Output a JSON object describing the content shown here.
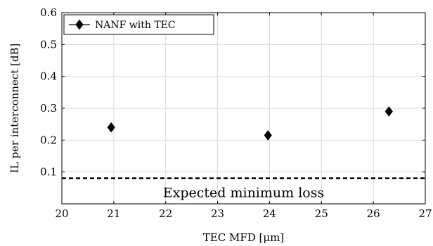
{
  "chart_data": {
    "type": "scatter",
    "xlabel": "TEC MFD [μm]",
    "ylabel": "IL per interconnect [dB]",
    "xlim": [
      20,
      27
    ],
    "ylim": [
      0,
      0.6
    ],
    "x_ticks": [
      "20",
      "21",
      "22",
      "23",
      "24",
      "25",
      "26",
      "27"
    ],
    "y_ticks": [
      "0.1",
      "0.2",
      "0.3",
      "0.4",
      "0.5",
      "0.6"
    ],
    "grid": true,
    "legend_position": "top-left",
    "series": [
      {
        "name": "NANF with TEC",
        "marker": "diamond",
        "color": "#000000",
        "x": [
          20.95,
          23.97,
          26.3
        ],
        "y": [
          0.24,
          0.215,
          0.29
        ]
      }
    ],
    "reference_line": {
      "y": 0.08,
      "style": "dashed",
      "label": "Expected minimum loss"
    }
  }
}
